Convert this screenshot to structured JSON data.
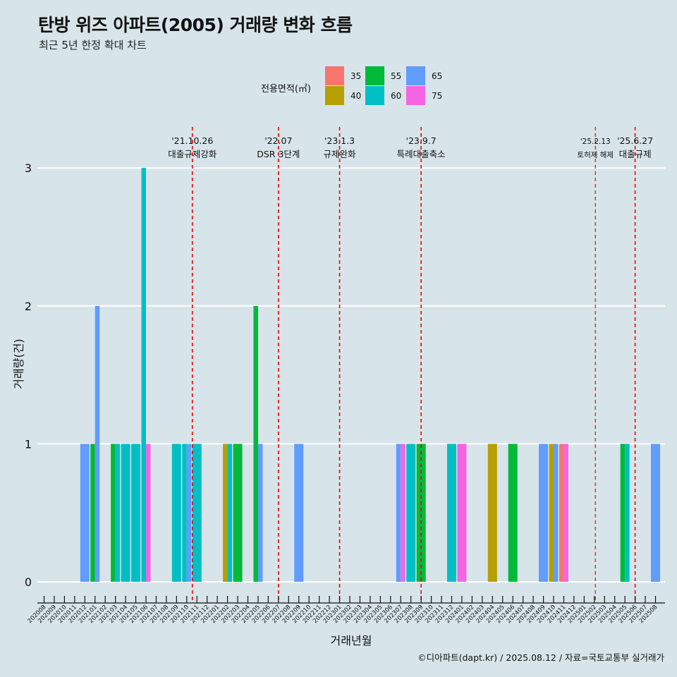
{
  "title": "탄방 위즈 아파트(2005) 거래량 변화 흐름",
  "subtitle": "최근 5년 한정 확대 차트",
  "caption": "©디아파트(dapt.kr) / 2025.08.12 / 자료=국토교통부 실거래가",
  "legend": {
    "title": "전용면적(㎡)",
    "items": [
      {
        "label": "35",
        "color": "#F8766D"
      },
      {
        "label": "40",
        "color": "#B79F00"
      },
      {
        "label": "55",
        "color": "#00BA38"
      },
      {
        "label": "60",
        "color": "#00BFC4"
      },
      {
        "label": "65",
        "color": "#619CFF"
      },
      {
        "label": "75",
        "color": "#F564E3"
      }
    ]
  },
  "chart_data": {
    "type": "bar",
    "xlabel": "거래년월",
    "ylabel": "거래량(건)",
    "ylim": [
      0,
      3
    ],
    "yticks": [
      0,
      1,
      2,
      3
    ],
    "grid": true,
    "categories": [
      "202008",
      "202009",
      "202010",
      "202011",
      "202012",
      "202101",
      "202102",
      "202103",
      "202104",
      "202105",
      "202106",
      "202107",
      "202108",
      "202109",
      "202110",
      "202111",
      "202112",
      "202201",
      "202202",
      "202203",
      "202204",
      "202205",
      "202206",
      "202207",
      "202208",
      "202209",
      "202210",
      "202211",
      "202212",
      "202301",
      "202302",
      "202303",
      "202304",
      "202305",
      "202306",
      "202307",
      "202308",
      "202309",
      "202310",
      "202311",
      "202312",
      "202401",
      "202402",
      "202403",
      "202404",
      "202405",
      "202406",
      "202407",
      "202408",
      "202409",
      "202410",
      "202411",
      "202412",
      "202501",
      "202502",
      "202503",
      "202504",
      "202505",
      "202506",
      "202507",
      "202508"
    ],
    "bars": [
      {
        "month": "202012",
        "area": "65",
        "value": 1
      },
      {
        "month": "202101",
        "area": "55",
        "value": 1
      },
      {
        "month": "202101",
        "area": "65",
        "value": 2
      },
      {
        "month": "202103",
        "area": "55",
        "value": 1
      },
      {
        "month": "202103",
        "area": "60",
        "value": 1
      },
      {
        "month": "202104",
        "area": "60",
        "value": 1
      },
      {
        "month": "202105",
        "area": "60",
        "value": 1
      },
      {
        "month": "202106",
        "area": "60",
        "value": 3
      },
      {
        "month": "202106",
        "area": "75",
        "value": 1
      },
      {
        "month": "202109",
        "area": "60",
        "value": 1
      },
      {
        "month": "202110",
        "area": "65",
        "value": 1
      },
      {
        "month": "202110",
        "area": "60",
        "value": 1
      },
      {
        "month": "202111",
        "area": "60",
        "value": 1
      },
      {
        "month": "202202",
        "area": "40",
        "value": 1
      },
      {
        "month": "202202",
        "area": "60",
        "value": 1
      },
      {
        "month": "202203",
        "area": "55",
        "value": 1
      },
      {
        "month": "202205",
        "area": "55",
        "value": 2
      },
      {
        "month": "202205",
        "area": "65",
        "value": 1
      },
      {
        "month": "202209",
        "area": "65",
        "value": 1
      },
      {
        "month": "202307",
        "area": "65",
        "value": 1
      },
      {
        "month": "202307",
        "area": "75",
        "value": 1
      },
      {
        "month": "202308",
        "area": "60",
        "value": 1
      },
      {
        "month": "202309",
        "area": "55",
        "value": 1
      },
      {
        "month": "202312",
        "area": "60",
        "value": 1
      },
      {
        "month": "202401",
        "area": "75",
        "value": 1
      },
      {
        "month": "202404",
        "area": "40",
        "value": 1
      },
      {
        "month": "202406",
        "area": "55",
        "value": 1
      },
      {
        "month": "202409",
        "area": "65",
        "value": 1
      },
      {
        "month": "202410",
        "area": "40",
        "value": 1
      },
      {
        "month": "202410",
        "area": "65",
        "value": 1
      },
      {
        "month": "202411",
        "area": "35",
        "value": 1
      },
      {
        "month": "202411",
        "area": "75",
        "value": 1
      },
      {
        "month": "202505",
        "area": "55",
        "value": 1
      },
      {
        "month": "202505",
        "area": "60",
        "value": 1
      },
      {
        "month": "202508",
        "area": "65",
        "value": 1
      }
    ],
    "annotations": [
      {
        "date": "'21.10.26",
        "text": "대출규제강화",
        "month_pos": 14.55
      },
      {
        "date": "'22.07",
        "text": "DSR 3단계",
        "month_pos": 23.0
      },
      {
        "date": "'23.1.3",
        "text": "규제완화",
        "month_pos": 29.0
      },
      {
        "date": "'23.9.7",
        "text": "특례대출축소",
        "month_pos": 37.0
      },
      {
        "date": "'25.2.13",
        "text": "토허제 해제",
        "month_pos": 54.1,
        "small": true
      },
      {
        "date": "'25.6.27",
        "text": "대출규제",
        "month_pos": 58.0
      }
    ]
  }
}
